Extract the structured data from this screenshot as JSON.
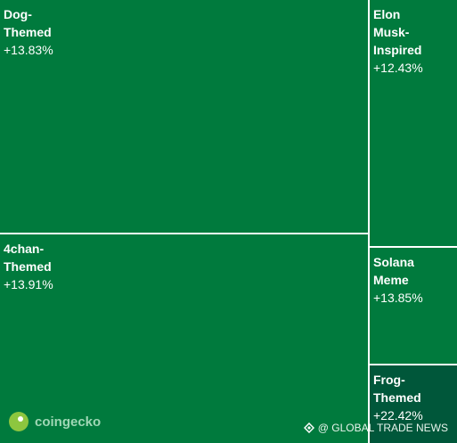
{
  "chart_data": {
    "type": "treemap",
    "categories": [
      "Dog-Themed",
      "4chan-Themed",
      "Elon Musk-Inspired",
      "Solana Meme",
      "Frog-Themed"
    ],
    "values": [
      13.83,
      13.91,
      12.43,
      13.85,
      22.42
    ],
    "value_labels": [
      "+13.83%",
      "+13.91%",
      "+12.43%",
      "+13.85%",
      "+22.42%"
    ],
    "colors": [
      "#007a3d",
      "#007a3d",
      "#007a3d",
      "#007a3d",
      "#00573a"
    ]
  },
  "watermarks": {
    "logo": "coingecko",
    "credit": "@ GLOBAL TRADE NEWS"
  }
}
